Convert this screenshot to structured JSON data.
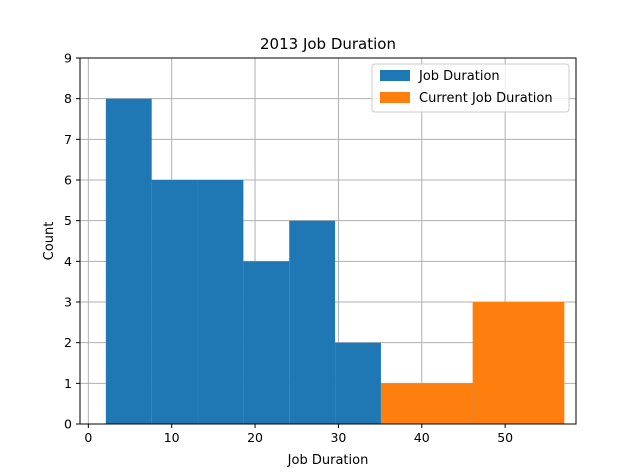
{
  "chart_data": {
    "type": "histogram",
    "title": "2013 Job Duration",
    "xlabel": "Job Duration",
    "ylabel": "Count",
    "xlim": [
      -1,
      58.5
    ],
    "ylim": [
      0,
      9
    ],
    "xticks": [
      0,
      10,
      20,
      30,
      40,
      50
    ],
    "yticks": [
      0,
      1,
      2,
      3,
      4,
      5,
      6,
      7,
      8,
      9
    ],
    "grid": true,
    "legend_position": "top-right",
    "series": [
      {
        "name": "Job Duration",
        "color": "#1f77b4",
        "bins": [
          {
            "x0": 2.1,
            "x1": 7.6,
            "count": 8
          },
          {
            "x0": 7.6,
            "x1": 13.1,
            "count": 6
          },
          {
            "x0": 13.1,
            "x1": 18.6,
            "count": 6
          },
          {
            "x0": 18.6,
            "x1": 24.1,
            "count": 4
          },
          {
            "x0": 24.1,
            "x1": 29.6,
            "count": 5
          },
          {
            "x0": 29.6,
            "x1": 35.1,
            "count": 2
          },
          {
            "x0": 35.1,
            "x1": 40.6,
            "count": 0
          },
          {
            "x0": 40.6,
            "x1": 46.1,
            "count": 0
          },
          {
            "x0": 46.1,
            "x1": 51.6,
            "count": 1
          }
        ]
      },
      {
        "name": "Current Job Duration",
        "color": "#ff7f0e",
        "bins": [
          {
            "x0": 35.1,
            "x1": 46.1,
            "count": 1
          },
          {
            "x0": 46.1,
            "x1": 57.1,
            "count": 3
          }
        ]
      }
    ]
  }
}
